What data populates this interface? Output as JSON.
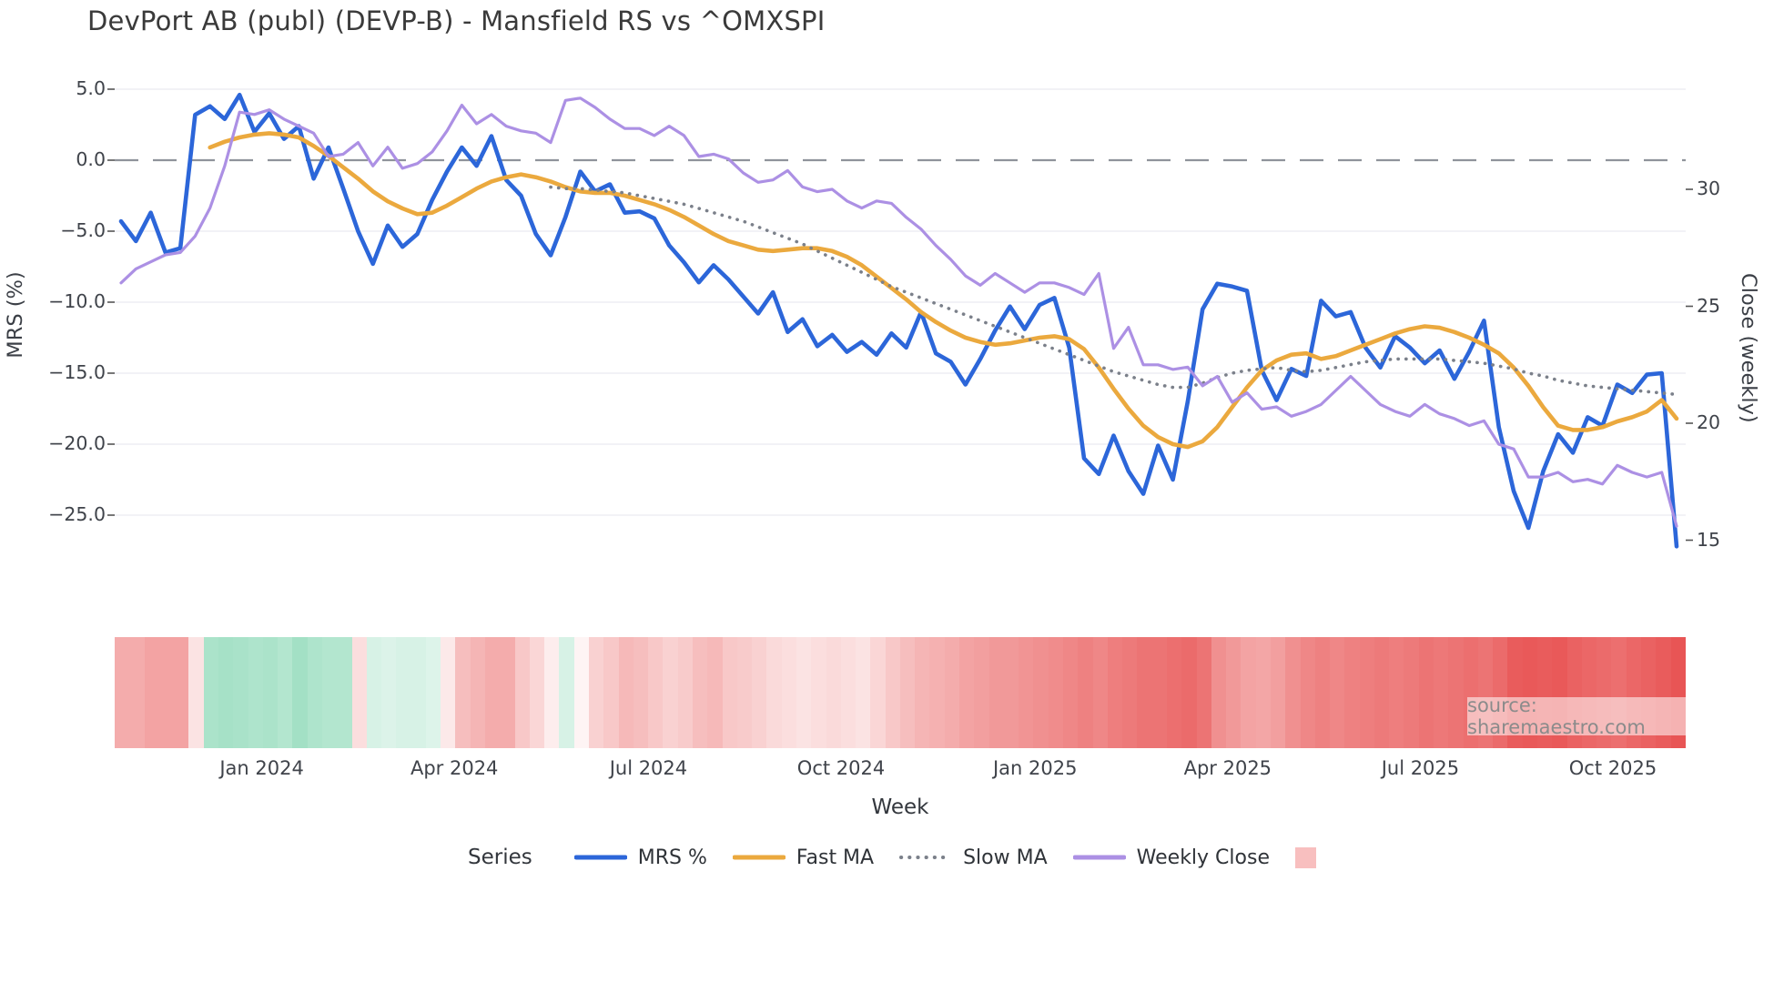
{
  "title": "DevPort AB (publ) (DEVP-B) - Mansfield RS vs ^OMXSPI",
  "source_label": "source: sharemaestro.com",
  "chart_data": {
    "type": "line",
    "title": "DevPort AB (publ) (DEVP-B) - Mansfield RS vs ^OMXSPI",
    "xlabel": "Week",
    "ylabel_left": "MRS (%)",
    "ylabel_right": "Close (weekly)",
    "legend_title": "Series",
    "grid": true,
    "zero_line_value": 0,
    "weeks_total": 106,
    "ylim_left": [
      -28.6,
      6.3
    ],
    "ylim_right": [
      13.9,
      35.1
    ],
    "left_ticks": [
      {
        "label": "5.0",
        "value": 5
      },
      {
        "label": "0.0",
        "value": 0
      },
      {
        "label": "−5.0",
        "value": -5
      },
      {
        "label": "−10.0",
        "value": -10
      },
      {
        "label": "−15.0",
        "value": -15
      },
      {
        "label": "−20.0",
        "value": -20
      },
      {
        "label": "−25.0",
        "value": -25
      }
    ],
    "right_ticks": [
      {
        "label": "30",
        "value": 30
      },
      {
        "label": "25",
        "value": 25
      },
      {
        "label": "20",
        "value": 20
      },
      {
        "label": "15",
        "value": 15
      }
    ],
    "x_ticks": [
      {
        "label": "Jan 2024",
        "week": 9.5
      },
      {
        "label": "Apr 2024",
        "week": 22.5
      },
      {
        "label": "Jul 2024",
        "week": 35.6
      },
      {
        "label": "Oct 2024",
        "week": 48.6
      },
      {
        "label": "Jan 2025",
        "week": 61.7
      },
      {
        "label": "Apr 2025",
        "week": 74.7
      },
      {
        "label": "Jul 2025",
        "week": 87.7
      },
      {
        "label": "Oct 2025",
        "week": 100.7
      }
    ],
    "series": [
      {
        "name": "MRS %",
        "axis": "left",
        "style": "solid",
        "color": "#2c66d9",
        "width": 4.6,
        "start_week": 0,
        "values": [
          -4.3,
          -5.7,
          -3.7,
          -6.5,
          -6.2,
          3.2,
          3.8,
          2.9,
          4.6,
          2.0,
          3.3,
          1.5,
          2.4,
          -1.3,
          0.9,
          -2.0,
          -5.0,
          -7.3,
          -4.6,
          -6.1,
          -5.2,
          -2.8,
          -0.8,
          0.9,
          -0.4,
          1.7,
          -1.4,
          -2.5,
          -5.2,
          -6.7,
          -4.0,
          -0.8,
          -2.2,
          -1.7,
          -3.7,
          -3.6,
          -4.1,
          -6.0,
          -7.2,
          -8.6,
          -7.4,
          -8.4,
          -9.6,
          -10.8,
          -9.3,
          -12.1,
          -11.2,
          -13.1,
          -12.3,
          -13.5,
          -12.8,
          -13.7,
          -12.2,
          -13.2,
          -10.7,
          -13.6,
          -14.2,
          -15.8,
          -14.0,
          -12.0,
          -10.3,
          -11.9,
          -10.2,
          -9.7,
          -13.2,
          -21.0,
          -22.1,
          -19.4,
          -21.9,
          -23.5,
          -20.1,
          -22.5,
          -17.0,
          -10.5,
          -8.7,
          -8.9,
          -9.2,
          -14.8,
          -16.9,
          -14.7,
          -15.2,
          -9.9,
          -11.0,
          -10.7,
          -13.2,
          -14.6,
          -12.4,
          -13.2,
          -14.3,
          -13.4,
          -15.4,
          -13.5,
          -11.3,
          -18.8,
          -23.3,
          -25.9,
          -21.9,
          -19.3,
          -20.6,
          -18.1,
          -18.7,
          -15.8,
          -16.4,
          -15.1,
          -15.0,
          -27.2
        ]
      },
      {
        "name": "Fast MA",
        "axis": "left",
        "style": "solid",
        "color": "#eba93e",
        "width": 4.6,
        "start_week": 6,
        "values": [
          0.9,
          1.3,
          1.6,
          1.8,
          1.9,
          1.8,
          1.6,
          1.0,
          0.3,
          -0.5,
          -1.3,
          -2.2,
          -2.9,
          -3.4,
          -3.8,
          -3.7,
          -3.2,
          -2.6,
          -2.0,
          -1.5,
          -1.2,
          -1.0,
          -1.2,
          -1.5,
          -1.9,
          -2.2,
          -2.3,
          -2.3,
          -2.5,
          -2.8,
          -3.1,
          -3.5,
          -4.0,
          -4.6,
          -5.2,
          -5.7,
          -6.0,
          -6.3,
          -6.4,
          -6.3,
          -6.2,
          -6.2,
          -6.4,
          -6.8,
          -7.4,
          -8.2,
          -9.0,
          -9.8,
          -10.7,
          -11.4,
          -12.0,
          -12.5,
          -12.8,
          -13.0,
          -12.9,
          -12.7,
          -12.5,
          -12.4,
          -12.6,
          -13.3,
          -14.6,
          -16.1,
          -17.5,
          -18.7,
          -19.5,
          -20.0,
          -20.2,
          -19.8,
          -18.8,
          -17.4,
          -16.0,
          -14.8,
          -14.1,
          -13.7,
          -13.6,
          -14.0,
          -13.8,
          -13.4,
          -13.0,
          -12.6,
          -12.2,
          -11.9,
          -11.7,
          -11.8,
          -12.1,
          -12.5,
          -13.0,
          -13.6,
          -14.6,
          -15.9,
          -17.4,
          -18.7,
          -19.0,
          -19.0,
          -18.8,
          -18.4,
          -18.1,
          -17.7,
          -16.9,
          -18.2
        ]
      },
      {
        "name": "Slow MA",
        "axis": "left",
        "style": "dotted",
        "color": "#7b808a",
        "width": 3.6,
        "start_week": 29,
        "values": [
          -1.9,
          -2.0,
          -2.0,
          -2.1,
          -2.2,
          -2.3,
          -2.5,
          -2.7,
          -2.9,
          -3.1,
          -3.4,
          -3.7,
          -4.0,
          -4.3,
          -4.7,
          -5.1,
          -5.5,
          -5.9,
          -6.4,
          -6.9,
          -7.4,
          -7.9,
          -8.4,
          -8.9,
          -9.3,
          -9.7,
          -10.1,
          -10.5,
          -10.9,
          -11.3,
          -11.7,
          -12.1,
          -12.5,
          -12.9,
          -13.3,
          -13.7,
          -14.1,
          -14.5,
          -14.9,
          -15.2,
          -15.5,
          -15.8,
          -16.0,
          -16.0,
          -15.7,
          -15.3,
          -15.0,
          -14.8,
          -14.7,
          -14.6,
          -14.8,
          -14.9,
          -14.8,
          -14.6,
          -14.4,
          -14.2,
          -14.1,
          -14.0,
          -14.0,
          -14.0,
          -14.0,
          -14.1,
          -14.2,
          -14.3,
          -14.5,
          -14.7,
          -15.0,
          -15.2,
          -15.5,
          -15.7,
          -15.9,
          -16.0,
          -16.1,
          -16.2,
          -16.3,
          -16.4,
          -16.5
        ]
      },
      {
        "name": "Weekly Close",
        "axis": "right",
        "style": "solid",
        "color": "#ac90e4",
        "width": 3.2,
        "start_week": 0,
        "values": [
          26.0,
          26.6,
          26.9,
          27.2,
          27.3,
          28.0,
          29.2,
          31.0,
          33.3,
          33.2,
          33.4,
          33.0,
          32.7,
          32.4,
          31.4,
          31.5,
          32.0,
          31.0,
          31.8,
          30.9,
          31.1,
          31.6,
          32.5,
          33.6,
          32.8,
          33.2,
          32.7,
          32.5,
          32.4,
          32.0,
          33.8,
          33.9,
          33.5,
          33.0,
          32.6,
          32.6,
          32.3,
          32.7,
          32.3,
          31.4,
          31.5,
          31.3,
          30.7,
          30.3,
          30.4,
          30.8,
          30.1,
          29.9,
          30.0,
          29.5,
          29.2,
          29.5,
          29.4,
          28.8,
          28.3,
          27.6,
          27.0,
          26.3,
          25.9,
          26.4,
          26.0,
          25.6,
          26.0,
          26.0,
          25.8,
          25.5,
          26.4,
          23.2,
          24.1,
          22.5,
          22.5,
          22.3,
          22.4,
          21.6,
          22.0,
          20.9,
          21.3,
          20.6,
          20.7,
          20.3,
          20.5,
          20.8,
          21.4,
          22.0,
          21.4,
          20.8,
          20.5,
          20.3,
          20.8,
          20.4,
          20.2,
          19.9,
          20.1,
          19.1,
          18.9,
          17.7,
          17.7,
          17.9,
          17.5,
          17.6,
          17.4,
          18.2,
          17.9,
          17.7,
          17.9,
          15.6
        ]
      }
    ],
    "heatmap": {
      "description": "weekly sentiment strip, green positive to red negative",
      "positive_color": "#78d2aa",
      "negative_color": "#e64646",
      "legend_color": "#f8bfbf",
      "values": [
        -0.45,
        -0.45,
        -0.5,
        -0.5,
        -0.5,
        -0.15,
        0.62,
        0.66,
        0.64,
        0.6,
        0.62,
        0.56,
        0.68,
        0.6,
        0.56,
        0.56,
        -0.18,
        0.3,
        0.26,
        0.3,
        0.3,
        0.25,
        -0.12,
        -0.35,
        -0.4,
        -0.45,
        -0.45,
        -0.3,
        -0.22,
        -0.1,
        0.3,
        -0.06,
        -0.25,
        -0.3,
        -0.38,
        -0.35,
        -0.3,
        -0.25,
        -0.28,
        -0.35,
        -0.38,
        -0.3,
        -0.28,
        -0.25,
        -0.2,
        -0.18,
        -0.15,
        -0.18,
        -0.2,
        -0.18,
        -0.15,
        -0.22,
        -0.3,
        -0.35,
        -0.4,
        -0.42,
        -0.45,
        -0.5,
        -0.52,
        -0.55,
        -0.55,
        -0.58,
        -0.6,
        -0.62,
        -0.65,
        -0.68,
        -0.65,
        -0.7,
        -0.72,
        -0.75,
        -0.75,
        -0.78,
        -0.8,
        -0.75,
        -0.6,
        -0.55,
        -0.5,
        -0.48,
        -0.52,
        -0.6,
        -0.65,
        -0.68,
        -0.65,
        -0.68,
        -0.7,
        -0.72,
        -0.7,
        -0.72,
        -0.75,
        -0.73,
        -0.75,
        -0.78,
        -0.75,
        -0.8,
        -0.88,
        -0.9,
        -0.88,
        -0.9,
        -0.85,
        -0.82,
        -0.8,
        -0.78,
        -0.82,
        -0.85,
        -0.88,
        -0.92
      ]
    }
  }
}
